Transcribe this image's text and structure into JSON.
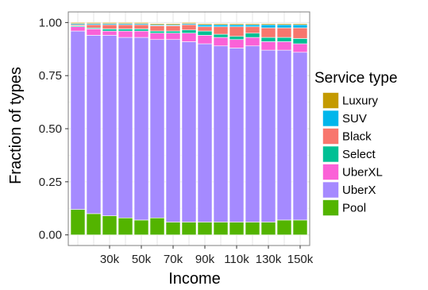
{
  "chart_data": {
    "type": "bar",
    "stacked": true,
    "xlabel": "Income",
    "ylabel": "Fraction of types",
    "ylim": [
      0,
      1
    ],
    "yticks": [
      0.0,
      0.25,
      0.5,
      0.75,
      1.0
    ],
    "ytick_labels": [
      "0.00",
      "0.25",
      "0.50",
      "0.75",
      "1.00"
    ],
    "categories": [
      "10k",
      "20k",
      "30k",
      "40k",
      "50k",
      "60k",
      "70k",
      "80k",
      "90k",
      "100k",
      "110k",
      "120k",
      "130k",
      "140k",
      "150k"
    ],
    "xtick_labels": [
      "",
      "",
      "30k",
      "",
      "50k",
      "",
      "70k",
      "",
      "90k",
      "",
      "110k",
      "",
      "130k",
      "",
      "150k"
    ],
    "grid": true,
    "legend_title": "Service type",
    "legend_position": "right",
    "series": [
      {
        "name": "Pool",
        "color": "#53b400",
        "values": [
          0.12,
          0.1,
          0.09,
          0.08,
          0.07,
          0.08,
          0.06,
          0.06,
          0.06,
          0.06,
          0.06,
          0.06,
          0.06,
          0.07,
          0.07
        ]
      },
      {
        "name": "UberX",
        "color": "#a58aff",
        "values": [
          0.84,
          0.84,
          0.85,
          0.85,
          0.86,
          0.84,
          0.86,
          0.85,
          0.84,
          0.83,
          0.82,
          0.83,
          0.81,
          0.8,
          0.79
        ]
      },
      {
        "name": "UberXL",
        "color": "#fb61d7",
        "values": [
          0.02,
          0.03,
          0.02,
          0.03,
          0.03,
          0.03,
          0.03,
          0.04,
          0.04,
          0.04,
          0.04,
          0.04,
          0.04,
          0.04,
          0.04
        ]
      },
      {
        "name": "Select",
        "color": "#00c094",
        "values": [
          0.005,
          0.005,
          0.01,
          0.01,
          0.01,
          0.01,
          0.01,
          0.015,
          0.02,
          0.015,
          0.015,
          0.02,
          0.02,
          0.02,
          0.025
        ]
      },
      {
        "name": "Black",
        "color": "#f8766d",
        "values": [
          0.005,
          0.015,
          0.02,
          0.02,
          0.02,
          0.025,
          0.025,
          0.025,
          0.02,
          0.035,
          0.045,
          0.03,
          0.045,
          0.045,
          0.05
        ]
      },
      {
        "name": "SUV",
        "color": "#00b6eb",
        "values": [
          0.005,
          0.005,
          0.005,
          0.005,
          0.005,
          0.005,
          0.005,
          0.005,
          0.01,
          0.01,
          0.01,
          0.01,
          0.015,
          0.015,
          0.015
        ]
      },
      {
        "name": "Luxury",
        "color": "#c49a00",
        "values": [
          0.005,
          0.005,
          0.005,
          0.005,
          0.005,
          0.005,
          0.005,
          0.005,
          0.005,
          0.005,
          0.005,
          0.005,
          0.005,
          0.005,
          0.005
        ]
      }
    ],
    "legend_order": [
      "Luxury",
      "SUV",
      "Black",
      "Select",
      "UberXL",
      "UberX",
      "Pool"
    ],
    "colors": {
      "panel_background": "#ffffff",
      "panel_border": "#7f7f7f",
      "grid_major": "#e6e6e6",
      "grid_minor": "#f4f4f4",
      "bar_outline": "#ffffff"
    }
  }
}
